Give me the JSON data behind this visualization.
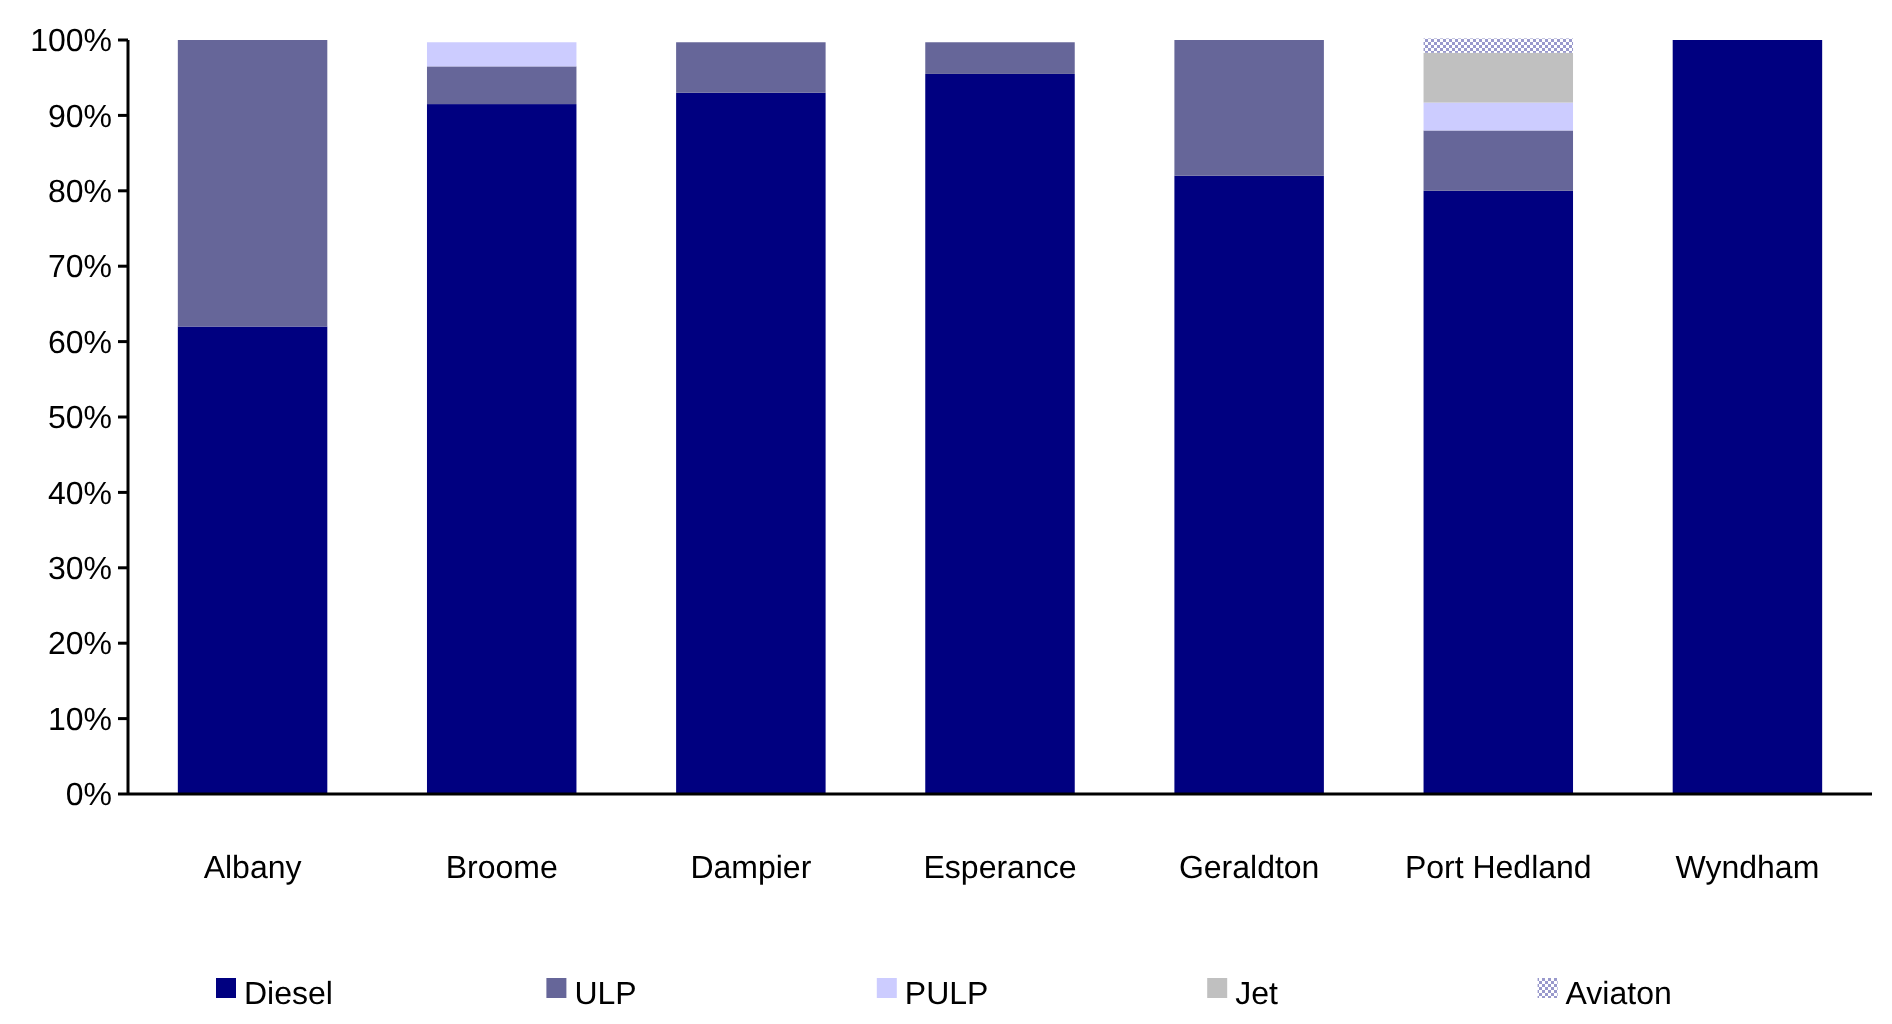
{
  "chart_data": {
    "type": "bar",
    "stacked": true,
    "categories": [
      "Albany",
      "Broome",
      "Dampier",
      "Esperance",
      "Geraldton",
      "Port Hedland",
      "Wyndham"
    ],
    "series": [
      {
        "name": "Diesel",
        "color": "#000080",
        "values": [
          62,
          91.5,
          93,
          95.5,
          82,
          80,
          100
        ]
      },
      {
        "name": "ULP",
        "color": "#666699",
        "values": [
          38,
          5,
          6.7,
          4.2,
          18,
          8,
          0
        ]
      },
      {
        "name": "PULP",
        "color": "#ccccff",
        "values": [
          0,
          3.2,
          0,
          0,
          0,
          3.7,
          0
        ]
      },
      {
        "name": "Jet",
        "color": "#c0c0c0",
        "values": [
          0,
          0,
          0,
          0,
          0,
          6.6,
          0
        ]
      },
      {
        "name": "Aviaton",
        "color": "#9999cc",
        "values": [
          0,
          0,
          0,
          0,
          0,
          1.9,
          0
        ]
      }
    ],
    "ylim": [
      0,
      100
    ],
    "yticks": [
      {
        "value": 0,
        "label": "0%"
      },
      {
        "value": 10,
        "label": "10%"
      },
      {
        "value": 20,
        "label": "20%"
      },
      {
        "value": 30,
        "label": "30%"
      },
      {
        "value": 40,
        "label": "40%"
      },
      {
        "value": 50,
        "label": "50%"
      },
      {
        "value": 60,
        "label": "60%"
      },
      {
        "value": 70,
        "label": "70%"
      },
      {
        "value": 80,
        "label": "80%"
      },
      {
        "value": 90,
        "label": "90%"
      },
      {
        "value": 100,
        "label": "100%"
      }
    ],
    "grid": false,
    "legend": "bottom"
  }
}
